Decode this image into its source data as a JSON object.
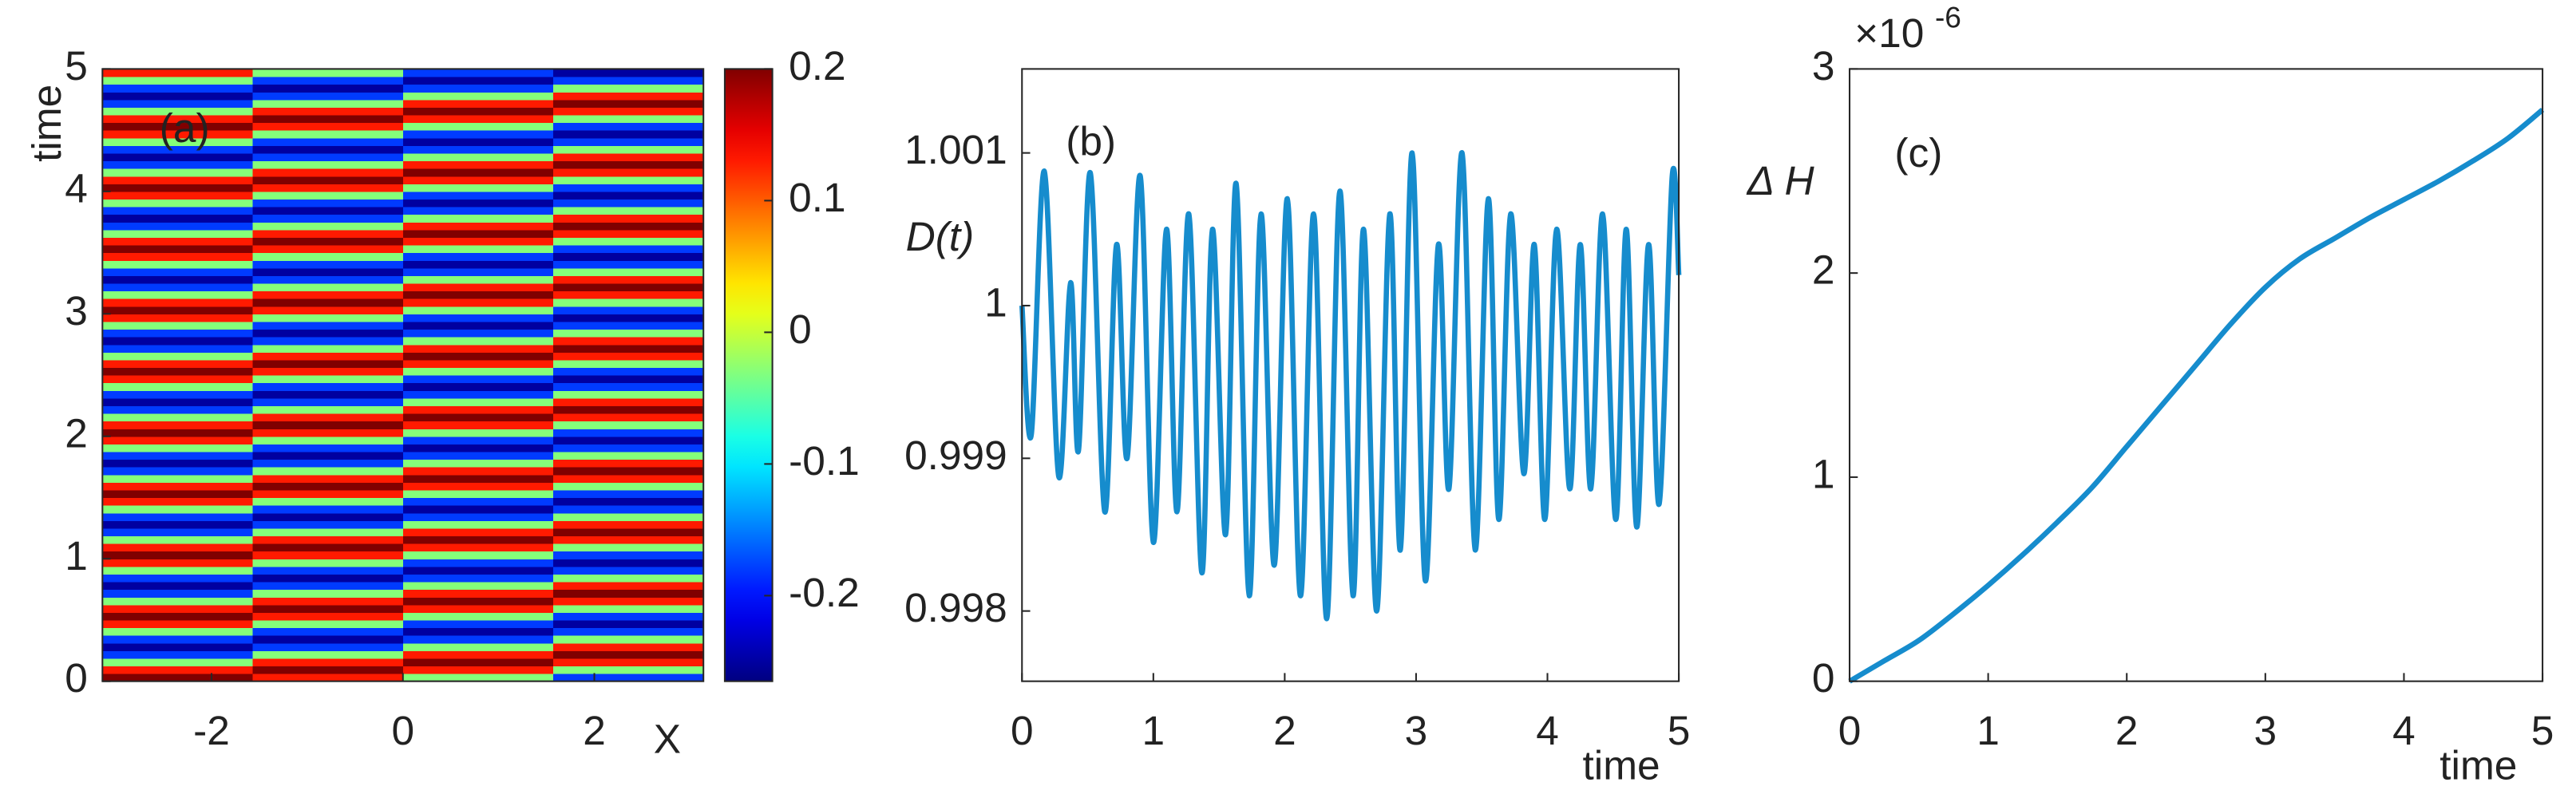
{
  "chart_data": [
    {
      "type": "heatmap",
      "annotation": "(a)",
      "ylabel": "time",
      "xlabel": "X",
      "xlim": [
        -3.14,
        3.14
      ],
      "ylim": [
        0,
        5
      ],
      "xticks": [
        -2,
        0,
        2
      ],
      "yticks": [
        0,
        1,
        2,
        3,
        4,
        5
      ],
      "colormap": "jet",
      "clim": [
        -0.265,
        0.2
      ],
      "cticks": [
        -0.2,
        -0.1,
        0,
        0.1,
        0.2
      ],
      "z": [
        [
          0.2,
          0.13,
          -0.03,
          -0.18
        ],
        [
          0.13,
          0.2,
          0.13,
          -0.03
        ],
        [
          -0.03,
          0.13,
          0.2,
          0.13
        ],
        [
          -0.18,
          -0.03,
          0.13,
          0.2
        ],
        [
          -0.25,
          -0.18,
          -0.03,
          0.13
        ],
        [
          -0.18,
          -0.25,
          -0.18,
          -0.03
        ],
        [
          -0.03,
          -0.18,
          -0.25,
          -0.18
        ],
        [
          0.13,
          -0.03,
          -0.18,
          -0.25
        ],
        [
          0.2,
          0.13,
          -0.03,
          -0.18
        ],
        [
          0.13,
          0.2,
          0.13,
          -0.03
        ],
        [
          -0.03,
          0.13,
          0.2,
          0.13
        ],
        [
          -0.18,
          -0.03,
          0.13,
          0.2
        ],
        [
          -0.25,
          -0.18,
          -0.03,
          0.13
        ],
        [
          -0.18,
          -0.25,
          -0.18,
          -0.03
        ],
        [
          -0.03,
          -0.18,
          -0.25,
          -0.18
        ],
        [
          0.13,
          -0.03,
          -0.18,
          -0.25
        ],
        [
          0.2,
          0.13,
          -0.03,
          -0.18
        ],
        [
          0.13,
          0.2,
          0.13,
          -0.03
        ],
        [
          -0.03,
          0.13,
          0.2,
          0.13
        ],
        [
          -0.18,
          -0.03,
          0.13,
          0.2
        ],
        [
          -0.25,
          -0.18,
          -0.03,
          0.13
        ],
        [
          -0.18,
          -0.25,
          -0.18,
          -0.03
        ],
        [
          -0.03,
          -0.18,
          -0.25,
          -0.18
        ],
        [
          0.13,
          -0.03,
          -0.18,
          -0.25
        ],
        [
          0.2,
          0.13,
          -0.03,
          -0.18
        ],
        [
          0.13,
          0.2,
          0.13,
          -0.03
        ],
        [
          -0.03,
          0.13,
          0.2,
          0.13
        ],
        [
          -0.18,
          -0.03,
          0.13,
          0.2
        ],
        [
          -0.25,
          -0.18,
          -0.03,
          0.13
        ],
        [
          -0.18,
          -0.25,
          -0.18,
          -0.03
        ],
        [
          -0.03,
          -0.18,
          -0.25,
          -0.18
        ],
        [
          0.13,
          -0.03,
          -0.18,
          -0.25
        ],
        [
          0.2,
          0.13,
          -0.03,
          -0.18
        ],
        [
          0.13,
          0.2,
          0.13,
          -0.03
        ],
        [
          -0.03,
          0.13,
          0.2,
          0.13
        ],
        [
          -0.18,
          -0.03,
          0.13,
          0.2
        ],
        [
          -0.25,
          -0.18,
          -0.03,
          0.13
        ],
        [
          -0.18,
          -0.25,
          -0.18,
          -0.03
        ],
        [
          -0.03,
          -0.18,
          -0.25,
          -0.18
        ],
        [
          0.13,
          -0.03,
          -0.18,
          -0.25
        ],
        [
          0.2,
          0.13,
          -0.03,
          -0.18
        ],
        [
          0.13,
          0.2,
          0.13,
          -0.03
        ],
        [
          -0.03,
          0.13,
          0.2,
          0.13
        ],
        [
          -0.18,
          -0.03,
          0.13,
          0.2
        ],
        [
          -0.25,
          -0.18,
          -0.03,
          0.13
        ],
        [
          -0.18,
          -0.25,
          -0.18,
          -0.03
        ],
        [
          -0.03,
          -0.18,
          -0.25,
          -0.18
        ],
        [
          0.13,
          -0.03,
          -0.18,
          -0.25
        ],
        [
          0.2,
          0.13,
          -0.03,
          -0.18
        ],
        [
          0.13,
          0.2,
          0.13,
          -0.03
        ],
        [
          -0.03,
          0.13,
          0.2,
          0.13
        ],
        [
          -0.18,
          -0.03,
          0.13,
          0.2
        ],
        [
          -0.25,
          -0.18,
          -0.03,
          0.13
        ],
        [
          -0.18,
          -0.25,
          -0.18,
          -0.03
        ],
        [
          -0.03,
          -0.18,
          -0.25,
          -0.18
        ],
        [
          0.13,
          -0.03,
          -0.18,
          -0.25
        ],
        [
          0.2,
          0.13,
          -0.03,
          -0.18
        ],
        [
          0.13,
          0.2,
          0.13,
          -0.03
        ],
        [
          -0.03,
          0.13,
          0.2,
          0.13
        ],
        [
          -0.18,
          -0.03,
          0.13,
          0.2
        ],
        [
          -0.25,
          -0.18,
          -0.03,
          0.13
        ],
        [
          -0.18,
          -0.25,
          -0.18,
          -0.03
        ],
        [
          -0.03,
          -0.18,
          -0.25,
          -0.18
        ],
        [
          0.13,
          -0.03,
          -0.18,
          -0.25
        ],
        [
          0.2,
          0.13,
          -0.03,
          -0.18
        ],
        [
          0.13,
          0.2,
          0.13,
          -0.03
        ],
        [
          -0.03,
          0.13,
          0.2,
          0.13
        ],
        [
          -0.18,
          -0.03,
          0.13,
          0.2
        ],
        [
          -0.25,
          -0.18,
          -0.03,
          0.13
        ],
        [
          -0.18,
          -0.25,
          -0.18,
          -0.03
        ],
        [
          -0.03,
          -0.18,
          -0.25,
          -0.18
        ],
        [
          0.13,
          -0.03,
          -0.18,
          -0.25
        ],
        [
          0.2,
          0.13,
          -0.03,
          -0.18
        ],
        [
          0.13,
          0.2,
          0.13,
          -0.03
        ],
        [
          -0.03,
          0.13,
          0.2,
          0.13
        ],
        [
          -0.18,
          -0.03,
          0.13,
          0.2
        ],
        [
          -0.25,
          -0.18,
          -0.03,
          0.13
        ],
        [
          -0.18,
          -0.25,
          -0.18,
          -0.03
        ],
        [
          -0.03,
          -0.18,
          -0.25,
          -0.18
        ],
        [
          0.13,
          -0.03,
          -0.18,
          -0.25
        ]
      ]
    },
    {
      "type": "line",
      "annotation": "(b)",
      "ylabel": "D(t)",
      "xlabel": "time",
      "xlim": [
        0,
        5
      ],
      "ylim": [
        0.99754,
        1.00155
      ],
      "xticks": [
        0,
        1,
        2,
        3,
        4,
        5
      ],
      "yticks": [
        0.998,
        0.999,
        1,
        1.001
      ],
      "x": [
        0,
        0.07,
        0.17,
        0.28,
        0.37,
        0.43,
        0.52,
        0.63,
        0.72,
        0.8,
        0.9,
        1,
        1.1,
        1.18,
        1.27,
        1.37,
        1.45,
        1.55,
        1.63,
        1.73,
        1.82,
        1.92,
        2.02,
        2.12,
        2.22,
        2.32,
        2.42,
        2.52,
        2.6,
        2.7,
        2.8,
        2.88,
        2.97,
        3.07,
        3.17,
        3.25,
        3.35,
        3.45,
        3.55,
        3.63,
        3.72,
        3.82,
        3.9,
        3.98,
        4.07,
        4.17,
        4.25,
        4.33,
        4.42,
        4.52,
        4.6,
        4.68,
        4.77,
        4.85,
        4.95,
        5
      ],
      "series": [
        {
          "color": "#168ccd",
          "values": [
            1,
            0.99915,
            1.00088,
            0.99888,
            1.00015,
            0.99905,
            1.00087,
            0.99865,
            1.0004,
            0.999,
            1.00085,
            0.99845,
            1.0005,
            0.99865,
            1.0006,
            0.99825,
            1.0005,
            0.9985,
            1.0008,
            0.9981,
            1.0006,
            0.9983,
            1.0007,
            0.9981,
            1.0006,
            0.99795,
            1.00075,
            0.9981,
            1.0005,
            0.998,
            1.0006,
            0.9984,
            1.001,
            0.9982,
            1.0004,
            0.9988,
            1.001,
            0.9984,
            1.0007,
            0.9986,
            1.0006,
            0.9989,
            1.0004,
            0.9986,
            1.0005,
            0.9988,
            1.0004,
            0.9988,
            1.0006,
            0.9986,
            1.0005,
            0.99855,
            1.0004,
            0.9987,
            1.00085,
            1.0002
          ]
        }
      ]
    },
    {
      "type": "line",
      "annotation": "(c)",
      "ylabel": "Δ H",
      "xlabel": "time",
      "y_multiplier": "×10",
      "y_exponent": "-6",
      "xlim": [
        0,
        5
      ],
      "ylim": [
        0,
        3e-06
      ],
      "xticks": [
        0,
        1,
        2,
        3,
        4,
        5
      ],
      "yticks": [
        0,
        {
          "value": 1e-06,
          "label": "1"
        },
        {
          "value": 2e-06,
          "label": "2"
        },
        {
          "value": 3e-06,
          "label": "3"
        }
      ],
      "x": [
        0,
        0.25,
        0.5,
        0.75,
        1,
        1.25,
        1.5,
        1.75,
        2,
        2.25,
        2.5,
        2.75,
        3,
        3.25,
        3.5,
        3.75,
        4,
        4.25,
        4.5,
        4.75,
        5
      ],
      "series": [
        {
          "color": "#168ccd",
          "values": [
            0,
            1e-07,
            2e-07,
            3.3e-07,
            4.7e-07,
            6.2e-07,
            7.8e-07,
            9.5e-07,
            1.15e-06,
            1.35e-06,
            1.55e-06,
            1.75e-06,
            1.93e-06,
            2.07e-06,
            2.17e-06,
            2.27e-06,
            2.36e-06,
            2.45e-06,
            2.55e-06,
            2.66e-06,
            2.8e-06
          ]
        }
      ]
    }
  ]
}
